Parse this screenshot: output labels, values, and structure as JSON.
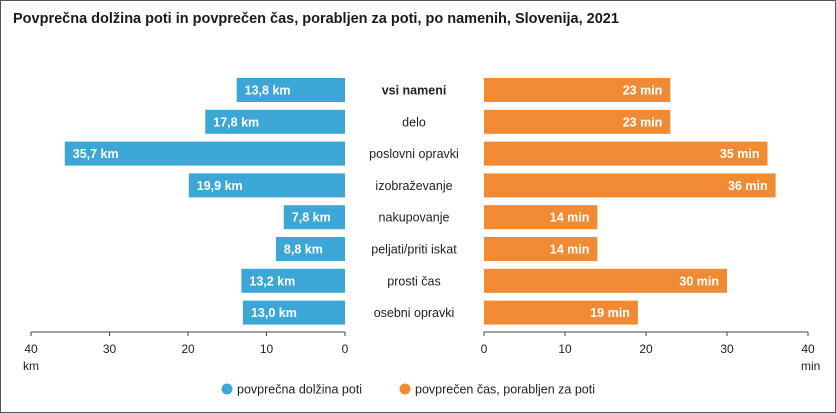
{
  "chart_data": {
    "type": "bar",
    "title": "Povprečna dolžina poti in povprečen čas, porabljen za poti, po namenih, Slovenija, 2021",
    "categories": [
      "vsi nameni",
      "delo",
      "poslovni opravki",
      "izobraževanje",
      "nakupovanje",
      "peljati/priti iskat",
      "prosti čas",
      "osebni opravki"
    ],
    "highlight_category": "vsi nameni",
    "series": [
      {
        "name": "povprečna dolžina poti",
        "color": "#3ca7d6",
        "unit": "km",
        "values": [
          13.8,
          17.8,
          35.7,
          19.9,
          7.8,
          8.8,
          13.2,
          13.0
        ],
        "labels": [
          "13,8 km",
          "17,8 km",
          "35,7 km",
          "19,9 km",
          "7,8 km",
          "8,8 km",
          "13,2 km",
          "13,0 km"
        ]
      },
      {
        "name": "povprečen čas, porabljen za poti",
        "color": "#f08b34",
        "unit": "min",
        "values": [
          23,
          23,
          35,
          36,
          14,
          14,
          30,
          19
        ],
        "labels": [
          "23 min",
          "23 min",
          "35 min",
          "36 min",
          "14 min",
          "14 min",
          "30 min",
          "19 min"
        ]
      }
    ],
    "left_axis": {
      "min": 0,
      "max": 40,
      "ticks": [
        "40",
        "30",
        "20",
        "10",
        "0"
      ],
      "unit_label": "km"
    },
    "right_axis": {
      "min": 0,
      "max": 40,
      "ticks": [
        "0",
        "10",
        "20",
        "30",
        "40"
      ],
      "unit_label": "min"
    },
    "legend_position": "bottom"
  }
}
